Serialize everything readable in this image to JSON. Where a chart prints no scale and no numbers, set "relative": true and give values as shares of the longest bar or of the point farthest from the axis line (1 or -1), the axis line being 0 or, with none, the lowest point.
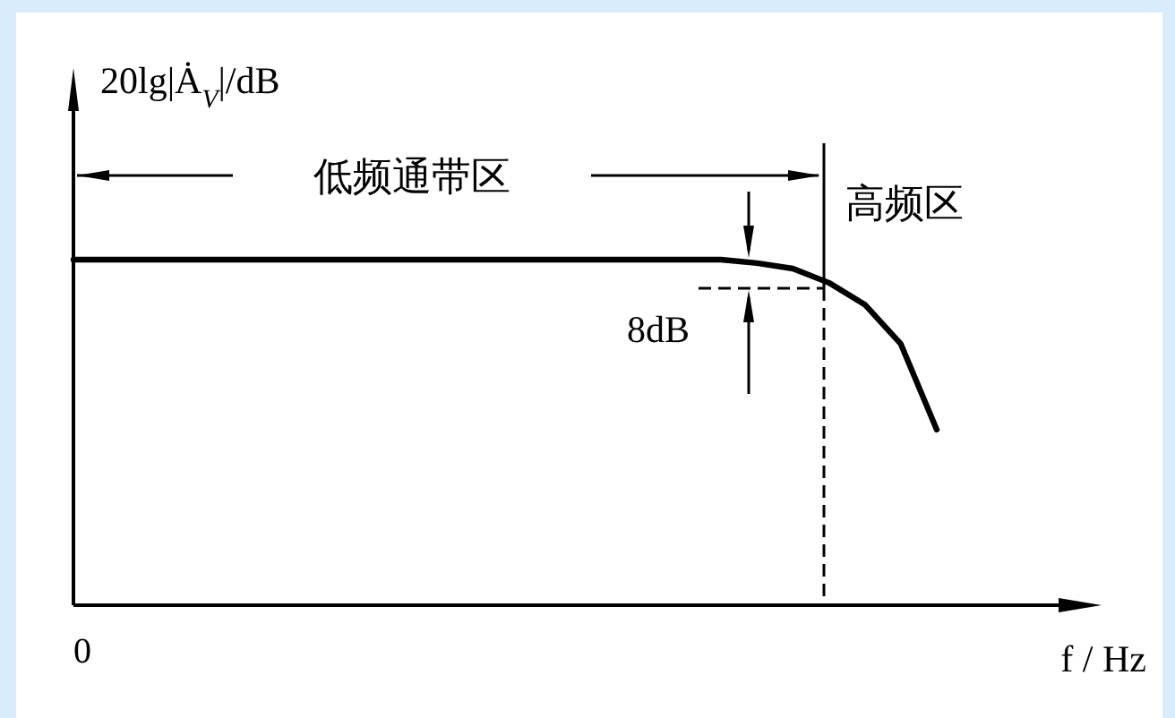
{
  "chart_data": {
    "type": "line",
    "relative": true,
    "ylabel": "20lg|Ȧ$_{V}$|/dB",
    "xlabel": "f / Hz",
    "categories": [
      null,
      null,
      null,
      null,
      null,
      null,
      null,
      null,
      null,
      null,
      null,
      null,
      null,
      null,
      null,
      null,
      null,
      null,
      null,
      null,
      null,
      null,
      null,
      null,
      null
    ],
    "series": [
      {
        "color": "#000000",
        "values": [
          1,
          1,
          1,
          1,
          1,
          1,
          1,
          1,
          1,
          1,
          1,
          1,
          1,
          1,
          1,
          1,
          1,
          1,
          1,
          0.99,
          0.974,
          0.933,
          0.87,
          0.756,
          0.508
        ]
      }
    ],
    "annotations": [
      "0",
      "低频通带区",
      "高频区",
      "8dB"
    ]
  }
}
